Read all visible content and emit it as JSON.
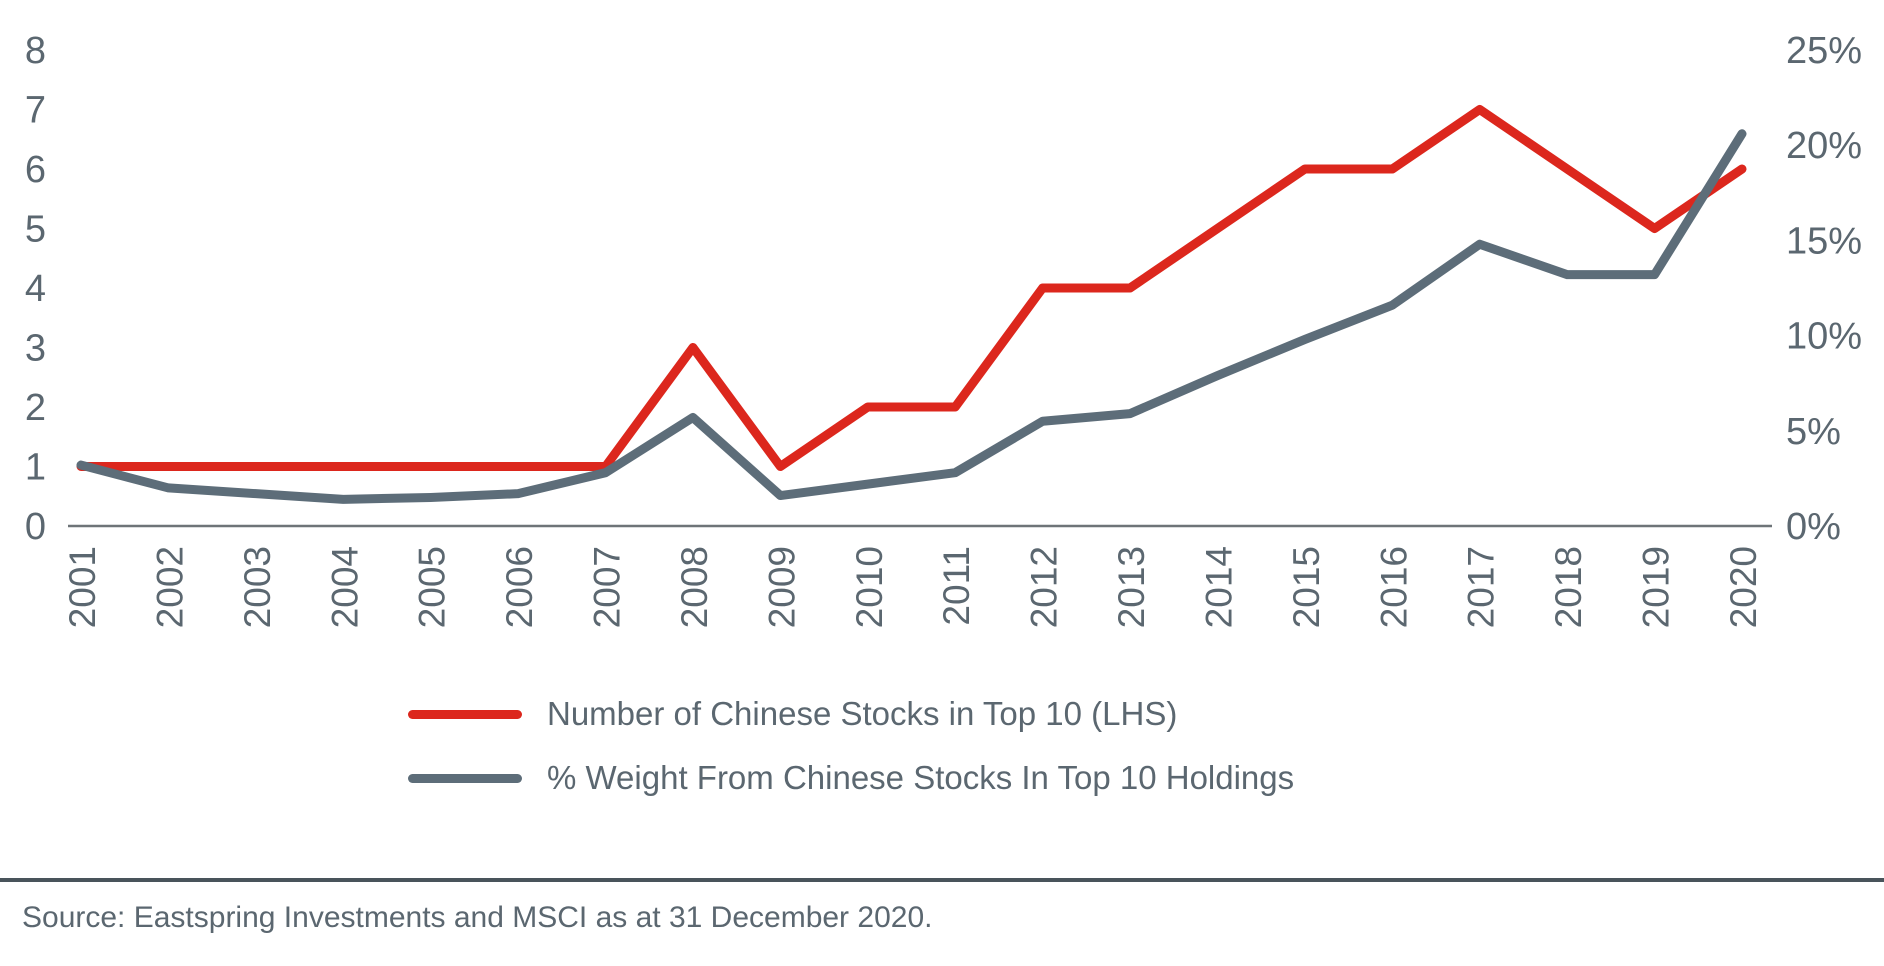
{
  "figure": {
    "legend": [
      {
        "label": "Number of Chinese Stocks in Top 10 (LHS)",
        "color": "#DC271D"
      },
      {
        "label": "% Weight From Chinese Stocks In Top 10 Holdings",
        "color": "#5D6D79"
      }
    ],
    "source_note": "Source: Eastspring Investments and MSCI as at 31 December 2020."
  },
  "chart_data": {
    "type": "line",
    "x": [
      2001,
      2002,
      2003,
      2004,
      2005,
      2006,
      2007,
      2008,
      2009,
      2010,
      2011,
      2012,
      2013,
      2014,
      2015,
      2016,
      2017,
      2018,
      2019,
      2020
    ],
    "series": [
      {
        "name": "Number of Chinese Stocks in Top 10 (LHS)",
        "axis": "left",
        "color": "#DC271D",
        "values": [
          1,
          1,
          1,
          1,
          1,
          1,
          1,
          3,
          1,
          2,
          2,
          4,
          4,
          5,
          6,
          6,
          7,
          6,
          5,
          6
        ]
      },
      {
        "name": "% Weight From Chinese Stocks In Top 10 Holdings",
        "axis": "right",
        "color": "#5D6D79",
        "values": [
          3.2,
          2.0,
          1.7,
          1.4,
          1.5,
          1.7,
          2.8,
          5.7,
          1.6,
          2.2,
          2.8,
          5.5,
          5.9,
          7.9,
          9.8,
          11.6,
          14.8,
          13.2,
          13.2,
          20.6
        ]
      }
    ],
    "left_axis": {
      "ticks": [
        "0",
        "1",
        "2",
        "3",
        "4",
        "5",
        "6",
        "7",
        "8"
      ],
      "range": [
        0,
        8
      ]
    },
    "right_axis": {
      "ticks": [
        "0%",
        "5%",
        "10%",
        "15%",
        "20%",
        "25%"
      ],
      "range": [
        0,
        25
      ]
    },
    "grid": false,
    "legend_position": "bottom",
    "title": ""
  }
}
